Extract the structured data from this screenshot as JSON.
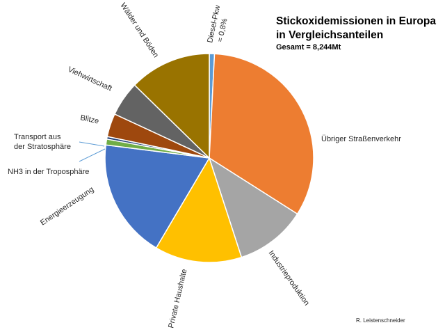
{
  "chart_data": {
    "type": "pie",
    "title": "Stickoxidemissionen in Europa",
    "title_line2": "in Vergleichsanteilen",
    "subtitle": "Gesamt = 8,244Mt",
    "credit": "R. Leistenschneider",
    "start_angle_deg": 0,
    "direction": "clockwise",
    "slices": [
      {
        "label": "Diesel-Pkw",
        "label2": "= 0,8%",
        "value": 0.8,
        "color": "#5B9BD5"
      },
      {
        "label": "Übriger Straßenverkehr",
        "value": 33.2,
        "color": "#ED7D31"
      },
      {
        "label": "Industrieproduktion",
        "value": 11.0,
        "color": "#A5A5A5"
      },
      {
        "label": "Private Haushalte",
        "value": 13.5,
        "color": "#FFC000"
      },
      {
        "label": "Energieerzeugung",
        "value": 18.5,
        "color": "#4472C4"
      },
      {
        "label": "NH3 in der Troposphäre",
        "value": 0.9,
        "color": "#70AD47"
      },
      {
        "label": "Transport aus",
        "label2": "der Stratosphäre",
        "value": 0.4,
        "color": "#264478"
      },
      {
        "label": "Blitze",
        "value": 3.6,
        "color": "#9E480E"
      },
      {
        "label": "Viehwirtschaft",
        "value": 5.4,
        "color": "#636363"
      },
      {
        "label": "Wälder und Böden",
        "value": 12.7,
        "color": "#997300"
      }
    ]
  }
}
